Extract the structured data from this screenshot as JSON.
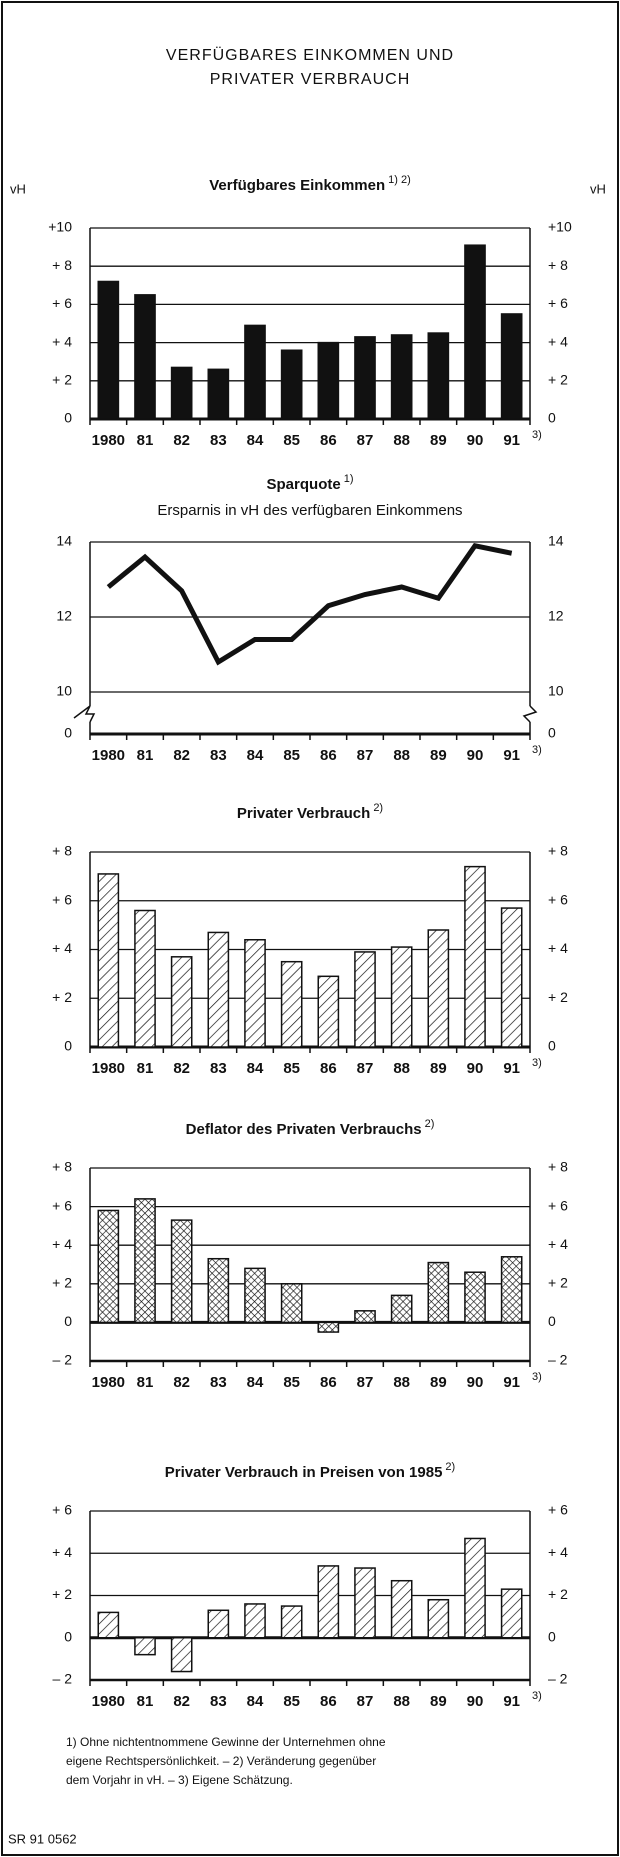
{
  "title": [
    "VERFÜGBARES EINKOMMEN UND",
    "PRIVATER VERBRAUCH"
  ],
  "footnotes": [
    "1) Ohne nichtentnommene Gewinne der Unternehmen ohne",
    "eigene Rechtspersönlichkeit. – 2) Veränderung gegenüber",
    "dem Vorjahr in vH. – 3) Eigene Schätzung."
  ],
  "source": "SR 91 0562",
  "chart_data": [
    {
      "type": "bar",
      "title": "Verfügbares Einkommen",
      "title_note": "1) 2)",
      "unit": "vH",
      "pattern": "solid",
      "color": "#111111",
      "categories": [
        "1980",
        "81",
        "82",
        "83",
        "84",
        "85",
        "86",
        "87",
        "88",
        "89",
        "90",
        "91"
      ],
      "category_note": "3)",
      "values": [
        7.2,
        6.5,
        2.7,
        2.6,
        4.9,
        3.6,
        4.0,
        4.3,
        4.4,
        4.5,
        9.1,
        5.5
      ],
      "ylim": [
        0,
        10
      ],
      "yticks": [
        0,
        {
          "value": 2,
          "label": "+ 2"
        },
        {
          "value": 4,
          "label": "+ 4"
        },
        {
          "value": 6,
          "label": "+ 6"
        },
        {
          "value": 8,
          "label": "+ 8"
        },
        {
          "value": 10,
          "label": "+10"
        }
      ],
      "grid": true
    },
    {
      "type": "line",
      "title": "Sparquote",
      "title_note": "1)",
      "subtitle": "Ersparnis in vH des verfügbaren Einkommens",
      "color": "#111111",
      "axis_break": true,
      "categories": [
        "1980",
        "81",
        "82",
        "83",
        "84",
        "85",
        "86",
        "87",
        "88",
        "89",
        "90",
        "91"
      ],
      "category_note": "3)",
      "values": [
        12.8,
        13.6,
        12.7,
        10.8,
        11.4,
        11.4,
        12.3,
        12.6,
        12.8,
        12.5,
        13.9,
        13.7
      ],
      "ylim": [
        10,
        14
      ],
      "yticks": [
        0,
        10,
        12,
        14
      ],
      "grid": true
    },
    {
      "type": "bar",
      "title": "Privater Verbrauch",
      "title_note": "2)",
      "pattern": "diagonal",
      "color": "#111111",
      "categories": [
        "1980",
        "81",
        "82",
        "83",
        "84",
        "85",
        "86",
        "87",
        "88",
        "89",
        "90",
        "91"
      ],
      "category_note": "3)",
      "values": [
        7.1,
        5.6,
        3.7,
        4.7,
        4.4,
        3.5,
        2.9,
        3.9,
        4.1,
        4.8,
        7.4,
        5.7
      ],
      "ylim": [
        0,
        8
      ],
      "yticks": [
        0,
        {
          "value": 2,
          "label": "+ 2"
        },
        {
          "value": 4,
          "label": "+ 4"
        },
        {
          "value": 6,
          "label": "+ 6"
        },
        {
          "value": 8,
          "label": "+ 8"
        }
      ],
      "grid": true
    },
    {
      "type": "bar",
      "title": "Deflator des Privaten Verbrauchs",
      "title_note": "2)",
      "pattern": "crosshatch",
      "color": "#111111",
      "categories": [
        "1980",
        "81",
        "82",
        "83",
        "84",
        "85",
        "86",
        "87",
        "88",
        "89",
        "90",
        "91"
      ],
      "category_note": "3)",
      "values": [
        5.8,
        6.4,
        5.3,
        3.3,
        2.8,
        2.0,
        -0.5,
        0.6,
        1.4,
        3.1,
        2.6,
        3.4
      ],
      "ylim": [
        -2,
        8
      ],
      "yticks": [
        {
          "value": -2,
          "label": "– 2"
        },
        0,
        {
          "value": 2,
          "label": "+ 2"
        },
        {
          "value": 4,
          "label": "+ 4"
        },
        {
          "value": 6,
          "label": "+ 6"
        },
        {
          "value": 8,
          "label": "+ 8"
        }
      ],
      "grid": true
    },
    {
      "type": "bar",
      "title": "Privater Verbrauch in Preisen von 1985",
      "title_note": "2)",
      "pattern": "diagonal",
      "color": "#111111",
      "categories": [
        "1980",
        "81",
        "82",
        "83",
        "84",
        "85",
        "86",
        "87",
        "88",
        "89",
        "90",
        "91"
      ],
      "category_note": "3)",
      "values": [
        1.2,
        -0.8,
        -1.6,
        1.3,
        1.6,
        1.5,
        3.4,
        3.3,
        2.7,
        1.8,
        4.7,
        2.3
      ],
      "ylim": [
        -2,
        6
      ],
      "yticks": [
        {
          "value": -2,
          "label": "– 2"
        },
        0,
        {
          "value": 2,
          "label": "+ 2"
        },
        {
          "value": 4,
          "label": "+ 4"
        },
        {
          "value": 6,
          "label": "+ 6"
        }
      ],
      "grid": true
    }
  ]
}
